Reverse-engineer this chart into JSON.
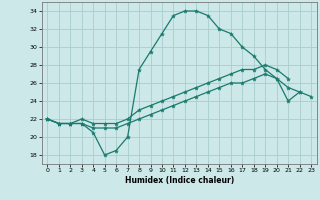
{
  "xlabel": "Humidex (Indice chaleur)",
  "bg_color": "#cce8e8",
  "line_color": "#1a7a6e",
  "grid_color": "#aacccc",
  "xlim": [
    -0.5,
    23.5
  ],
  "ylim": [
    17,
    35
  ],
  "xticks": [
    0,
    1,
    2,
    3,
    4,
    5,
    6,
    7,
    8,
    9,
    10,
    11,
    12,
    13,
    14,
    15,
    16,
    17,
    18,
    19,
    20,
    21,
    22,
    23
  ],
  "yticks": [
    18,
    20,
    22,
    24,
    26,
    28,
    30,
    32,
    34
  ],
  "series": [
    {
      "x": [
        0,
        1,
        2,
        3,
        4,
        5,
        6,
        7,
        8,
        9,
        10,
        11,
        12,
        13,
        14,
        15,
        16,
        17,
        18,
        19,
        20,
        21,
        22
      ],
      "y": [
        22,
        21.5,
        21.5,
        21.5,
        20.5,
        18.0,
        18.5,
        20.0,
        27.5,
        29.5,
        31.5,
        33.5,
        34.0,
        34.0,
        33.5,
        32.0,
        31.5,
        30.0,
        29.0,
        27.5,
        26.5,
        24.0,
        25.0
      ]
    },
    {
      "x": [
        0,
        1,
        2,
        3,
        4,
        5,
        6,
        7,
        8,
        9,
        10,
        11,
        12,
        13,
        14,
        15,
        16,
        17,
        18,
        19,
        20,
        21
      ],
      "y": [
        22,
        21.5,
        21.5,
        22.0,
        21.5,
        21.5,
        21.5,
        22.0,
        23.0,
        23.5,
        24.0,
        24.5,
        25.0,
        25.5,
        26.0,
        26.5,
        27.0,
        27.5,
        27.5,
        28.0,
        27.5,
        26.5
      ]
    },
    {
      "x": [
        0,
        1,
        2,
        3,
        4,
        5,
        6,
        7,
        8,
        9,
        10,
        11,
        12,
        13,
        14,
        15,
        16,
        17,
        18,
        19,
        20,
        21,
        22,
        23
      ],
      "y": [
        22,
        21.5,
        21.5,
        21.5,
        21.0,
        21.0,
        21.0,
        21.5,
        22.0,
        22.5,
        23.0,
        23.5,
        24.0,
        24.5,
        25.0,
        25.5,
        26.0,
        26.0,
        26.5,
        27.0,
        26.5,
        25.5,
        25.0,
        24.5
      ]
    }
  ]
}
